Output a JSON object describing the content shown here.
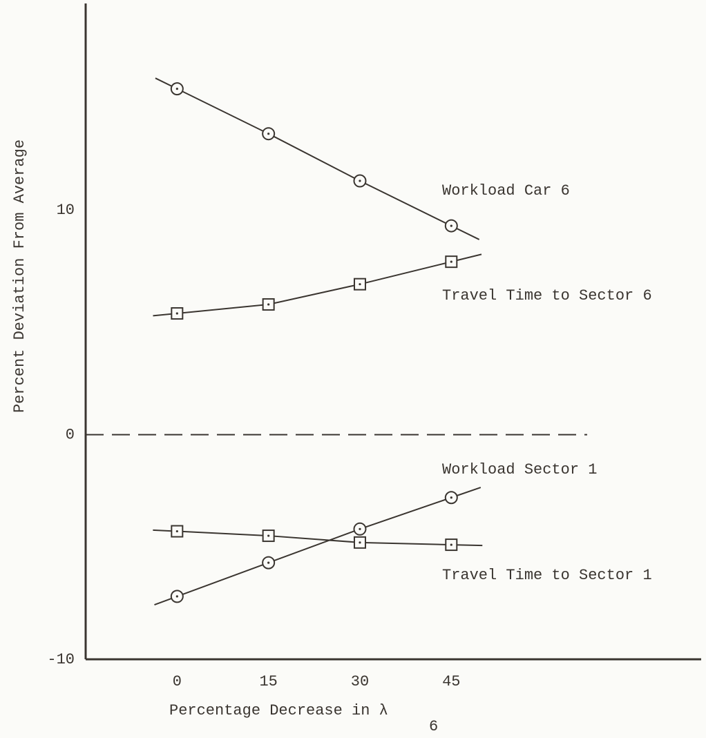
{
  "chart_data": {
    "type": "line",
    "xlabel": "Percentage Decrease in λ",
    "xlabel_subscript": "6",
    "ylabel": "Percent Deviation From Average",
    "x": [
      0,
      15,
      30,
      45
    ],
    "xlim": [
      -15,
      86
    ],
    "xticks": [
      0,
      15,
      30,
      45
    ],
    "ylim": [
      -10,
      19.2
    ],
    "yticks": [
      -10,
      0,
      10
    ],
    "dashed_zero_line": true,
    "series": [
      {
        "name": "Workload Car 6",
        "marker": "circle",
        "color": "#3a3530",
        "values": [
          15.4,
          13.4,
          11.3,
          9.3
        ]
      },
      {
        "name": "Travel Time to Sector 6",
        "marker": "square",
        "color": "#3a3530",
        "values": [
          5.4,
          5.8,
          6.7,
          7.7
        ]
      },
      {
        "name": "Workload Sector 1",
        "marker": "circle",
        "color": "#3a3530",
        "values": [
          -7.2,
          -5.7,
          -4.2,
          -2.8
        ]
      },
      {
        "name": "Travel Time to Sector 1",
        "marker": "square",
        "color": "#3a3530",
        "values": [
          -4.3,
          -4.5,
          -4.8,
          -4.9
        ]
      }
    ]
  }
}
